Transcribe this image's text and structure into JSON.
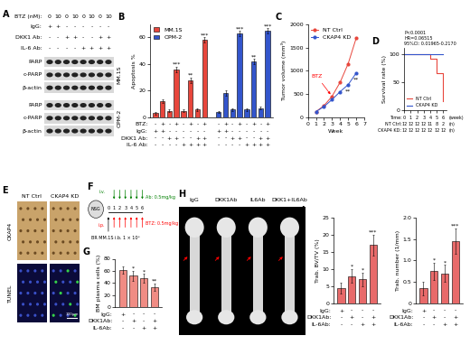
{
  "blot": {
    "panel": "A",
    "conditions": [
      {
        "label": "BTZ (nM):",
        "marks": [
          "0",
          "10",
          "0",
          "10",
          "0",
          "10",
          "0",
          "10"
        ]
      },
      {
        "label": "IgG:",
        "marks": [
          "+",
          "+",
          "-",
          "-",
          "-",
          "-",
          "-",
          "-"
        ]
      },
      {
        "label": "DKK1 Ab:",
        "marks": [
          "-",
          "-",
          "+",
          "+",
          "-",
          "-",
          "+",
          "+"
        ]
      },
      {
        "label": "IL-6 Ab:",
        "marks": [
          "-",
          "-",
          "-",
          "-",
          "+",
          "+",
          "+",
          "+"
        ]
      }
    ],
    "cell_lines": [
      {
        "name": "MM.1S",
        "bands": [
          "PARP",
          "c-PARP",
          "β-actin"
        ]
      },
      {
        "name": "OPM-2",
        "bands": [
          "PARP",
          "c-PARP",
          "β-actin"
        ]
      }
    ]
  },
  "chart_data": [
    {
      "panel": "B",
      "type": "bar",
      "ylabel": "Apoptosis %",
      "ylim": [
        0,
        70
      ],
      "yticks": [
        0,
        20,
        40,
        60
      ],
      "legend": "upper left",
      "series": [
        {
          "name": "MM.1S",
          "color": "#e8463c",
          "values": [
            3,
            12,
            5,
            36,
            5,
            28,
            6,
            58
          ],
          "errors": [
            1,
            1.5,
            1,
            2,
            1,
            2,
            1,
            2
          ],
          "stars": [
            null,
            null,
            null,
            "***",
            null,
            "**",
            null,
            "***"
          ]
        },
        {
          "name": "OPM-2",
          "color": "#3355cc",
          "values": [
            4,
            18,
            6,
            63,
            6,
            42,
            7,
            65
          ],
          "errors": [
            1,
            2,
            1,
            2,
            1,
            2,
            1,
            2
          ],
          "stars": [
            null,
            null,
            null,
            "***",
            null,
            "**",
            null,
            "***"
          ]
        }
      ],
      "conditions": [
        {
          "label": "BTZ:",
          "marks": [
            "-",
            "+",
            "-",
            "+",
            "-",
            "+",
            "-",
            "+",
            "-",
            "+",
            "-",
            "+",
            "-",
            "+",
            "-",
            "+"
          ]
        },
        {
          "label": "IgG:",
          "marks": [
            "+",
            "+",
            "-",
            "-",
            "-",
            "-",
            "-",
            "-",
            "+",
            "+",
            "-",
            "-",
            "-",
            "-",
            "-",
            "-"
          ]
        },
        {
          "label": "DKK1 Ab:",
          "marks": [
            "-",
            "-",
            "+",
            "+",
            "-",
            "-",
            "+",
            "+",
            "-",
            "-",
            "+",
            "+",
            "-",
            "-",
            "+",
            "+"
          ]
        },
        {
          "label": "IL-6 Ab:",
          "marks": [
            "-",
            "-",
            "-",
            "-",
            "+",
            "+",
            "+",
            "+",
            "-",
            "-",
            "-",
            "-",
            "+",
            "+",
            "+",
            "+"
          ]
        }
      ]
    },
    {
      "panel": "C",
      "type": "line",
      "xlabel": "Week",
      "ylabel": "Tumor volume (mm³)",
      "x": [
        1,
        2,
        3,
        4,
        5,
        6
      ],
      "xlim": [
        0,
        7
      ],
      "xticks": [
        0,
        1,
        2,
        3,
        4,
        5,
        6,
        7
      ],
      "ylim": [
        0,
        2000
      ],
      "yticks": [
        0,
        500,
        1000,
        1500,
        2000
      ],
      "legend": "upper left",
      "series": [
        {
          "name": "NT Ctrl",
          "color": "#e8463c",
          "marker": "circle",
          "values": [
            120,
            250,
            450,
            750,
            1150,
            1700
          ],
          "stars": [
            null,
            null,
            null,
            null,
            null,
            null
          ]
        },
        {
          "name": "CKAP4 KD",
          "color": "#3355cc",
          "marker": "circle",
          "values": [
            120,
            230,
            380,
            550,
            700,
            950
          ],
          "stars": [
            null,
            null,
            null,
            null,
            "**",
            "**"
          ]
        }
      ],
      "annotations": [
        {
          "text": "BTZ",
          "x": 3
        }
      ]
    },
    {
      "panel": "D",
      "type": "step",
      "ylabel": "Survival rate (%)",
      "tick_labels": "y",
      "x": [
        0,
        1,
        2,
        3,
        4,
        5,
        6
      ],
      "xlim": [
        0,
        6.5
      ],
      "xticks": [
        0,
        1,
        2,
        3,
        4,
        5,
        6
      ],
      "ylim": [
        0,
        110
      ],
      "yticks": [
        0,
        50,
        100
      ],
      "legend": "lower left",
      "series": [
        {
          "name": "NT Ctrl",
          "color": "#e8463c",
          "values": [
            100,
            100,
            100,
            100,
            91.7,
            66.7,
            16.7
          ]
        },
        {
          "name": "CKAP4 KD",
          "color": "#3355cc",
          "values": [
            100,
            100,
            100,
            100,
            100,
            100,
            100
          ]
        }
      ],
      "statistics": [
        "P<0.0001",
        "HR=0.06515",
        "95%CI: 0.01965-0.2170"
      ],
      "risk_table": [
        {
          "label": "Time:",
          "values": [
            0,
            1,
            2,
            3,
            4,
            5,
            6
          ],
          "unit": "(week)"
        },
        {
          "label": "NT Ctrl:",
          "values": [
            12,
            12,
            12,
            12,
            11,
            8,
            2
          ],
          "unit": "(n)"
        },
        {
          "label": "CKAP4 KD:",
          "values": [
            12,
            12,
            12,
            12,
            12,
            12,
            12
          ],
          "unit": "(n)"
        }
      ]
    },
    {
      "panel": "G",
      "type": "bar",
      "ylabel": "BM plasma cells (%)",
      "ylim": [
        0,
        80
      ],
      "yticks": [
        0,
        20,
        40,
        60,
        80
      ],
      "color": "#f08c84",
      "values": [
        62,
        52,
        48,
        33
      ],
      "errors": [
        6,
        8,
        7,
        6
      ],
      "stars": [
        null,
        "*",
        "*",
        "**"
      ],
      "conditions": [
        {
          "label": "IgG:",
          "marks": [
            "+",
            "-",
            "-",
            "-"
          ]
        },
        {
          "label": "DKK1Ab:",
          "marks": [
            "-",
            "+",
            "-",
            "+"
          ]
        },
        {
          "label": "IL-6Ab:",
          "marks": [
            "-",
            "-",
            "+",
            "+"
          ]
        }
      ]
    },
    {
      "panel": "I",
      "type": "bar",
      "ylabel": "Trab. BV/TV (%)",
      "ylim": [
        0,
        25
      ],
      "yticks": [
        0,
        5,
        10,
        15,
        20,
        25
      ],
      "color": "#e86a6a",
      "values": [
        4.5,
        8,
        7,
        17
      ],
      "errors": [
        1.5,
        2,
        2,
        3
      ],
      "stars": [
        null,
        "*",
        "*",
        "***"
      ],
      "conditions": [
        {
          "label": "IgG:",
          "marks": [
            "+",
            "-",
            "-",
            "-"
          ]
        },
        {
          "label": "DKK1Ab:",
          "marks": [
            "-",
            "+",
            "-",
            "+"
          ]
        },
        {
          "label": "IL-6Ab:",
          "marks": [
            "-",
            "-",
            "+",
            "+"
          ]
        }
      ]
    },
    {
      "type": "bar",
      "ylabel": "Trab. number (1/mm)",
      "ylim": [
        0,
        2.0
      ],
      "yticks": [
        0,
        0.5,
        1.0,
        1.5,
        2.0
      ],
      "color": "#e86a6a",
      "values": [
        0.35,
        0.75,
        0.7,
        1.45
      ],
      "errors": [
        0.15,
        0.2,
        0.2,
        0.3
      ],
      "stars": [
        null,
        "*",
        "*",
        "***"
      ],
      "conditions": [
        {
          "label": "IgG:",
          "marks": [
            "+",
            "-",
            "-",
            "-"
          ]
        },
        {
          "label": "DKK1Ab:",
          "marks": [
            "-",
            "+",
            "-",
            "+"
          ]
        },
        {
          "label": "IL-6Ab:",
          "marks": [
            "-",
            "-",
            "+",
            "+"
          ]
        }
      ]
    }
  ],
  "histology": {
    "panel": "E",
    "columns": [
      "NT Ctrl",
      "CKAP4 KD"
    ],
    "rows": [
      "CKAP4",
      "TUNEL"
    ],
    "scale_bar": "100μm"
  },
  "schema": {
    "panel": "F",
    "mouse": "NSG",
    "route_ab": "i.v.",
    "route_btz": "i.p.",
    "dose_ab": "Ab: 0.5mg/kg",
    "dose_btz": "BTZ: 0.5mg/kg",
    "inoculation": "BR MM.1S i.b. 1 × 10⁶",
    "timeline": [
      0,
      1,
      2,
      3,
      4,
      5,
      6
    ]
  },
  "bone_images": {
    "panel": "H",
    "labels": [
      "IgG",
      "DKK1Ab",
      "IL6Ab",
      "DKK1+IL6Ab"
    ]
  }
}
